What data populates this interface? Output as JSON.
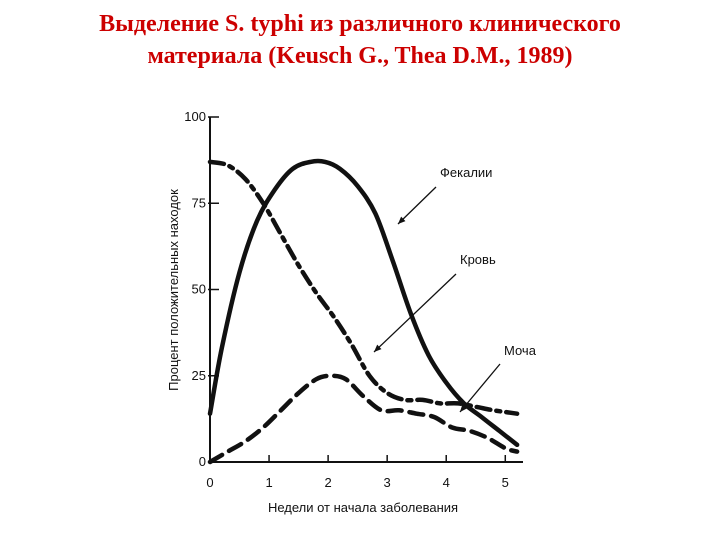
{
  "title": {
    "line1": "Выделение S. typhi из различного клинического",
    "line2": "материала (Keusch G., Thea D.M., 1989)",
    "color": "#cc0000"
  },
  "chart_data": {
    "type": "line",
    "xlabel": "Недели от начала заболевания",
    "ylabel": "Процент положительных находок",
    "xlim": [
      0,
      5.3
    ],
    "ylim": [
      0,
      100
    ],
    "xticks": [
      0,
      1,
      2,
      3,
      4,
      5
    ],
    "yticks": [
      0,
      25,
      50,
      75,
      100
    ],
    "grid": false,
    "series": [
      {
        "name": "Фекалии",
        "style": "solid",
        "color": "#111111",
        "x": [
          0,
          0.2,
          0.5,
          0.8,
          1.1,
          1.4,
          1.7,
          1.95,
          2.2,
          2.5,
          2.8,
          3.1,
          3.4,
          3.7,
          4.0,
          4.3,
          4.6,
          4.9,
          5.2
        ],
        "y": [
          14,
          33,
          55,
          70,
          79,
          85,
          87,
          87,
          85,
          80,
          72,
          58,
          43,
          31,
          23,
          17,
          13,
          9,
          5
        ]
      },
      {
        "name": "Кровь",
        "style": "dashdot",
        "color": "#111111",
        "x": [
          0,
          0.3,
          0.6,
          0.9,
          1.2,
          1.5,
          1.8,
          2.1,
          2.4,
          2.7,
          3.0,
          3.3,
          3.6,
          3.9,
          4.2,
          4.5,
          4.8,
          5.2
        ],
        "y": [
          87,
          86,
          82,
          75,
          66,
          57,
          49,
          42,
          34,
          25,
          20,
          18,
          18,
          17,
          17,
          16,
          15,
          14
        ]
      },
      {
        "name": "Моча",
        "style": "dashed",
        "color": "#111111",
        "x": [
          0,
          0.3,
          0.6,
          0.9,
          1.2,
          1.5,
          1.8,
          2.05,
          2.3,
          2.6,
          2.9,
          3.2,
          3.5,
          3.8,
          4.1,
          4.4,
          4.7,
          5.0,
          5.2
        ],
        "y": [
          0,
          3,
          6,
          10,
          15,
          20,
          24,
          25,
          24,
          19,
          15,
          15,
          14,
          13,
          10,
          9,
          7,
          4,
          3
        ]
      }
    ]
  }
}
